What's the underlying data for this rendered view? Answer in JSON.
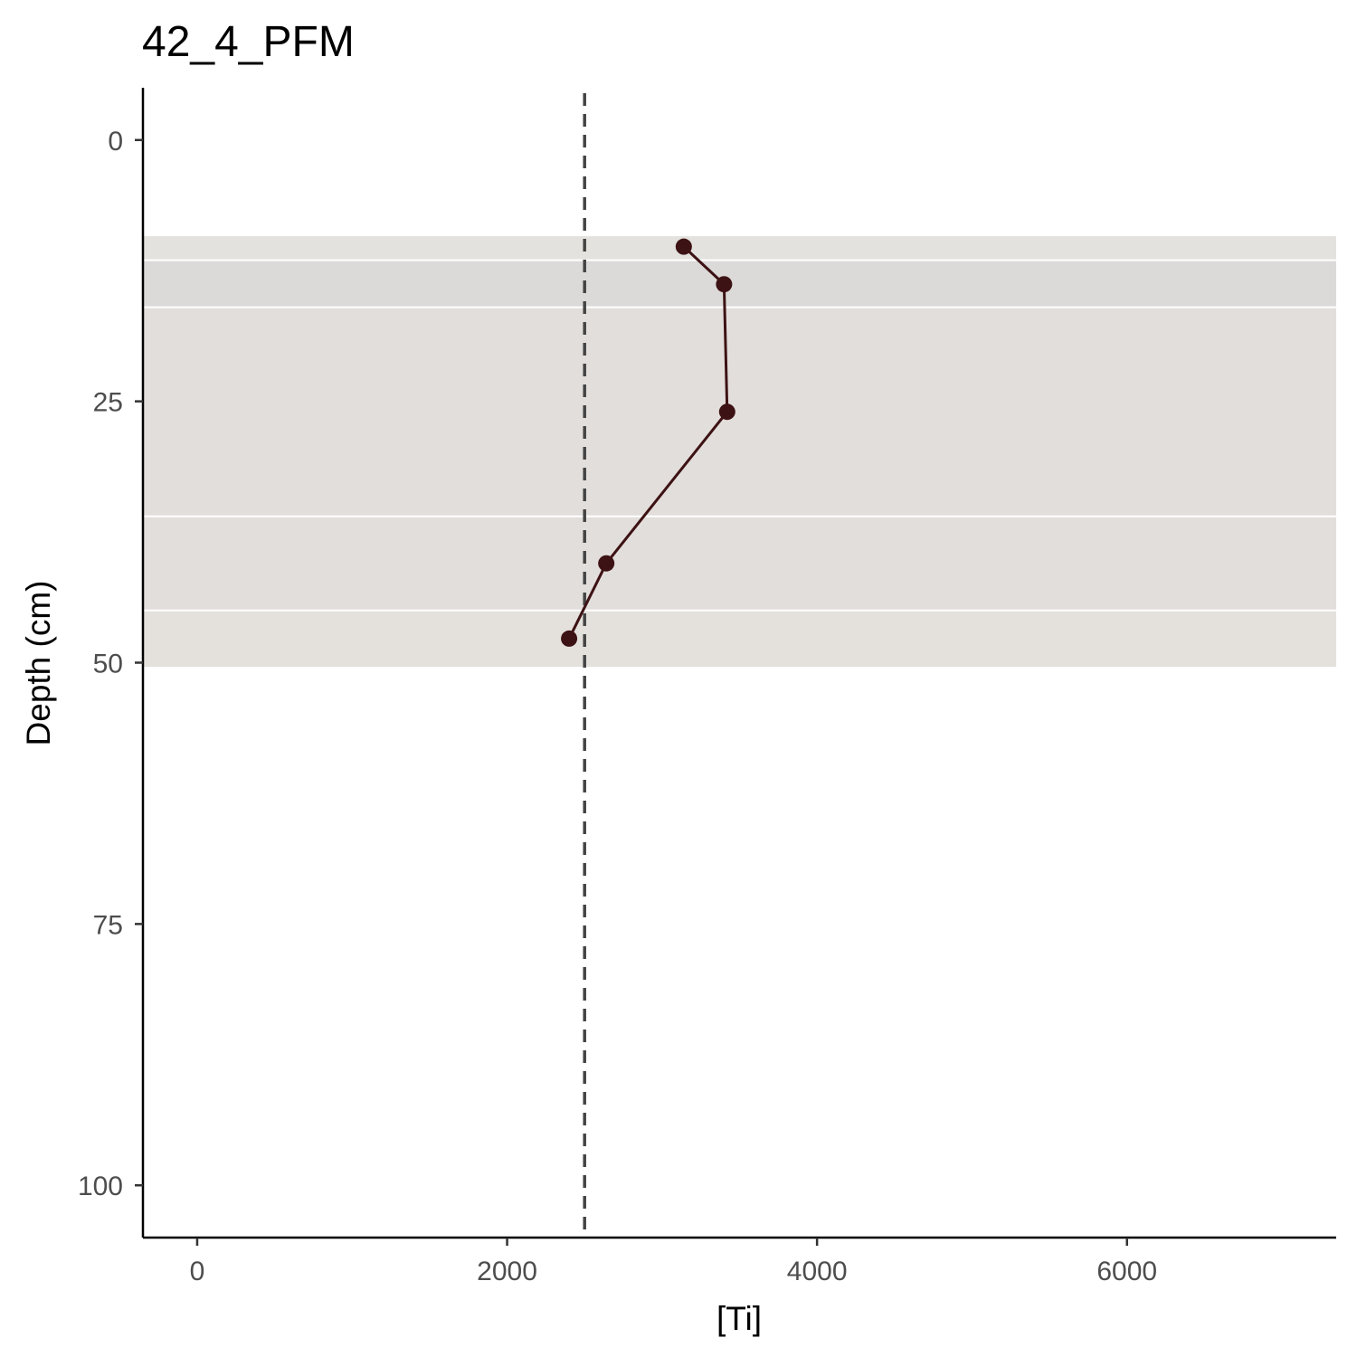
{
  "chart_data": {
    "type": "line",
    "title": "42_4_PFM",
    "xlabel": "[Ti]",
    "ylabel": "Depth (cm)",
    "xlim": [
      -350,
      7350
    ],
    "ylim": [
      -5,
      105
    ],
    "y_reversed": true,
    "x_ticks": [
      0,
      2000,
      4000,
      6000
    ],
    "y_ticks": [
      0,
      25,
      50,
      75,
      100
    ],
    "grid": false,
    "series": [
      {
        "x": [
          3140,
          3400,
          3420,
          2640,
          2400
        ],
        "y": [
          10.2,
          13.8,
          26.0,
          40.5,
          47.7
        ],
        "color": "#3d1214"
      }
    ],
    "reference_line": {
      "axis": "x",
      "value": 2500,
      "style": "dashed",
      "color": "#444444"
    },
    "horizons": [
      {
        "top": 9.2,
        "bottom": 11.5,
        "color": "#e3e2de"
      },
      {
        "top": 11.5,
        "bottom": 16.0,
        "color": "#dbdad8"
      },
      {
        "top": 16.0,
        "bottom": 36.0,
        "color": "#e2dedb"
      },
      {
        "top": 36.0,
        "bottom": 45.0,
        "color": "#e2dedb"
      },
      {
        "top": 45.0,
        "bottom": 50.4,
        "color": "#e4e0dc"
      }
    ]
  }
}
